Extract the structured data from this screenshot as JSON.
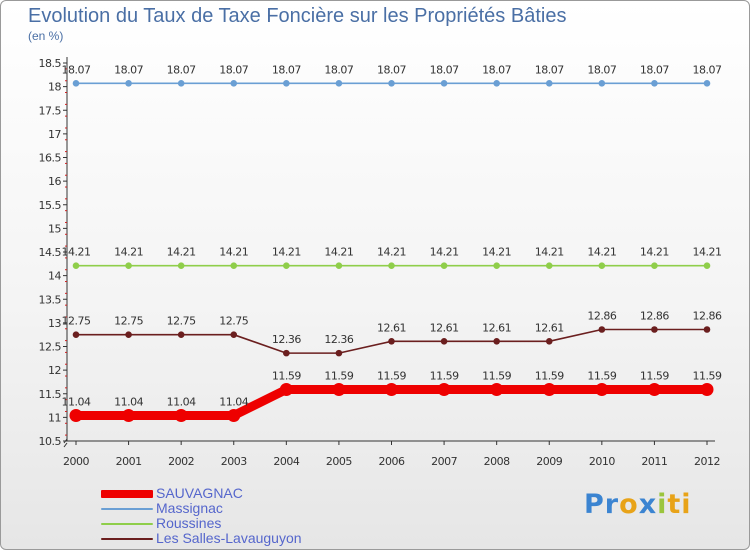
{
  "title": "Evolution du Taux de Taxe Foncière sur les Propriétés Bâties",
  "unit_label": "(en %)",
  "logo": {
    "text": "Proxiti",
    "letters": [
      {
        "ch": "P",
        "color": "#3b84d1"
      },
      {
        "ch": "r",
        "color": "#3b84d1"
      },
      {
        "ch": "o",
        "color": "#e8a318"
      },
      {
        "ch": "x",
        "color": "#3b84d1"
      },
      {
        "ch": "i",
        "color": "#9bc53d"
      },
      {
        "ch": "t",
        "color": "#e8a318"
      },
      {
        "ch": "i",
        "color": "#e8a318"
      }
    ]
  },
  "chart_data": {
    "type": "line",
    "x": [
      2000,
      2001,
      2002,
      2003,
      2004,
      2005,
      2006,
      2007,
      2008,
      2009,
      2010,
      2011,
      2012
    ],
    "ylim": [
      10.5,
      18.5
    ],
    "yticks": [
      "10.5",
      "11",
      "11.5",
      "12",
      "12.5",
      "13",
      "13.5",
      "14",
      "14.5",
      "15",
      "15.5",
      "16",
      "16.5",
      "17",
      "17.5",
      "18",
      "18.5"
    ],
    "grid": false,
    "legend_position": "bottom-left",
    "series": [
      {
        "name": "Massignac",
        "color": "#6a9fd4",
        "emphasis": false,
        "values": [
          18.07,
          18.07,
          18.07,
          18.07,
          18.07,
          18.07,
          18.07,
          18.07,
          18.07,
          18.07,
          18.07,
          18.07,
          18.07
        ],
        "labels": [
          "18.07",
          "18.07",
          "18.07",
          "18.07",
          "18.07",
          "18.07",
          "18.07",
          "18.07",
          "18.07",
          "18.07",
          "18.07",
          "18.07",
          "18.07"
        ]
      },
      {
        "name": "Roussines",
        "color": "#8fce4a",
        "emphasis": false,
        "values": [
          14.21,
          14.21,
          14.21,
          14.21,
          14.21,
          14.21,
          14.21,
          14.21,
          14.21,
          14.21,
          14.21,
          14.21,
          14.21
        ],
        "labels": [
          "14.21",
          "14.21",
          "14.21",
          "14.21",
          "14.21",
          "14.21",
          "14.21",
          "14.21",
          "14.21",
          "14.21",
          "14.21",
          "14.21",
          "14.21"
        ]
      },
      {
        "name": "Les Salles-Lavauguyon",
        "color": "#6b1f1f",
        "emphasis": false,
        "values": [
          12.75,
          12.75,
          12.75,
          12.75,
          12.36,
          12.36,
          12.61,
          12.61,
          12.61,
          12.61,
          12.86,
          12.86,
          12.86
        ],
        "labels": [
          "12.75",
          "12.75",
          "12.75",
          "12.75",
          "12.36",
          "12.36",
          "12.61",
          "12.61",
          "12.61",
          "12.61",
          "12.86",
          "12.86",
          "12.86"
        ]
      },
      {
        "name": "SAUVAGNAC",
        "color": "#ee0000",
        "emphasis": true,
        "values": [
          11.04,
          11.04,
          11.04,
          11.04,
          11.59,
          11.59,
          11.59,
          11.59,
          11.59,
          11.59,
          11.59,
          11.59,
          11.59
        ],
        "labels": [
          "11.04",
          "11.04",
          "11.04",
          "11.04",
          "11.59",
          "11.59",
          "11.59",
          "11.59",
          "11.59",
          "11.59",
          "11.59",
          "11.59",
          "11.59"
        ]
      }
    ],
    "legend_order": [
      "SAUVAGNAC",
      "Massignac",
      "Roussines",
      "Les Salles-Lavauguyon"
    ]
  }
}
